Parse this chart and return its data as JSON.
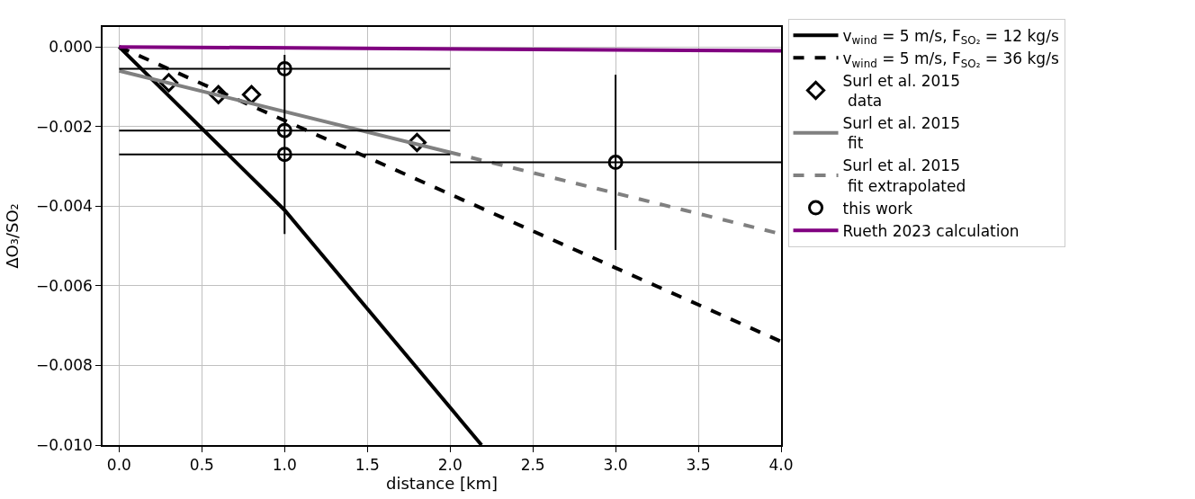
{
  "chart_data": {
    "type": "line",
    "xlabel": "distance [km]",
    "ylabel": "ΔO₃/SO₂",
    "xlim": [
      -0.1,
      4.0
    ],
    "ylim": [
      -0.01,
      0.0005
    ],
    "xticks": [
      {
        "value": 0,
        "label": "0.0"
      },
      {
        "value": 0.5,
        "label": "0.5"
      },
      {
        "value": 1,
        "label": "1.0"
      },
      {
        "value": 1.5,
        "label": "1.5"
      },
      {
        "value": 2,
        "label": "2.0"
      },
      {
        "value": 2.5,
        "label": "2.5"
      },
      {
        "value": 3,
        "label": "3.0"
      },
      {
        "value": 3.5,
        "label": "3.5"
      },
      {
        "value": 4,
        "label": "4.0"
      }
    ],
    "yticks": [
      {
        "value": 0,
        "label": "0.000"
      },
      {
        "value": -0.002,
        "label": "−0.002"
      },
      {
        "value": -0.004,
        "label": "−0.004"
      },
      {
        "value": -0.006,
        "label": "−0.006"
      },
      {
        "value": -0.008,
        "label": "−0.008"
      },
      {
        "value": -0.01,
        "label": "−0.010"
      }
    ],
    "grid": true,
    "legend": "right",
    "series": [
      {
        "name": "v$_{wind}$ = 5 m/s, F$_{SO₂}$ = 12 kg/s",
        "color": "#000000",
        "line_style": "solid",
        "marker": "none",
        "x": [
          0,
          1,
          2.19
        ],
        "values": [
          0,
          -0.0041,
          -0.01
        ]
      },
      {
        "name": "v$_{wind}$ = 5 m/s, F$_{SO₂}$ = 36 kg/s",
        "color": "#000000",
        "line_style": "dashed",
        "marker": "none",
        "x": [
          0,
          4
        ],
        "values": [
          0,
          -0.0074
        ]
      },
      {
        "name": "Surl et al. 2015\n data",
        "type": "scatter",
        "color": "#000000",
        "marker": "diamond",
        "x": [
          0.3,
          0.6,
          0.8,
          1.8
        ],
        "values": [
          -0.0009,
          -0.0012,
          -0.0012,
          -0.0024
        ]
      },
      {
        "name": "Surl et al. 2015\n fit",
        "color": "#808080",
        "line_style": "solid",
        "marker": "none",
        "x": [
          0,
          2
        ],
        "values": [
          -0.0006,
          -0.00265
        ]
      },
      {
        "name": "Surl et al. 2015\n fit extrapolated",
        "color": "#808080",
        "line_style": "dashed",
        "marker": "none",
        "x": [
          2,
          4
        ],
        "values": [
          -0.00265,
          -0.0047
        ]
      },
      {
        "name": "this work",
        "type": "scatter",
        "color": "#000000",
        "marker": "circle",
        "x": [
          1,
          1,
          1,
          3
        ],
        "values": [
          -0.00055,
          -0.0021,
          -0.0027,
          -0.0029
        ],
        "errors": [
          null,
          null,
          [
            -0.0047,
            -0.0002
          ],
          [
            -0.0051,
            -0.0007
          ]
        ],
        "xerrors": [
          [
            0,
            2
          ],
          [
            0,
            2
          ],
          [
            0,
            2
          ],
          [
            2,
            4
          ]
        ]
      },
      {
        "name": "Rueth 2023 calculation",
        "color": "#800080",
        "line_style": "solid",
        "marker": "none",
        "x": [
          0,
          4
        ],
        "values": [
          0,
          -0.0001
        ]
      }
    ]
  }
}
